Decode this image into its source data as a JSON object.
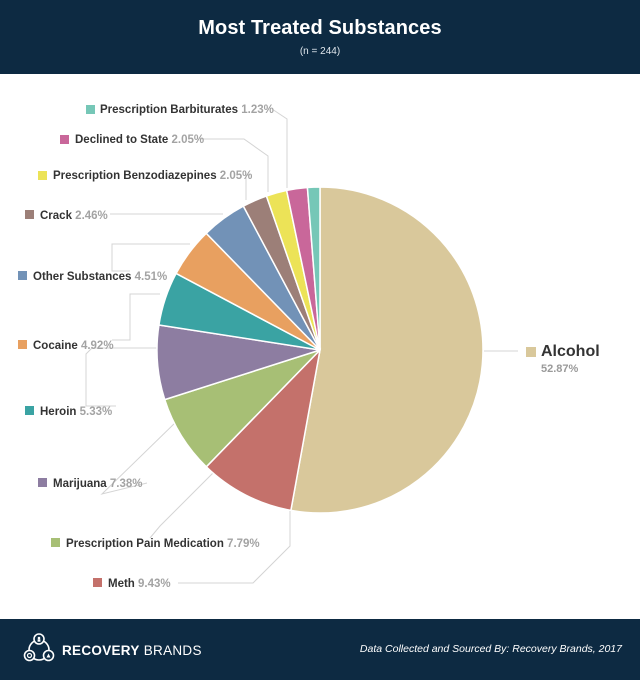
{
  "header": {
    "title": "Most Treated Substances",
    "subtitle": "(n = 244)"
  },
  "footer": {
    "brand_bold": "RECOVERY",
    "brand_light": " BRANDS",
    "source": "Data Collected and Sourced By: Recovery Brands, 2017"
  },
  "chart_data": {
    "type": "pie",
    "title": "Most Treated Substances",
    "subtitle": "(n = 244)",
    "slices": [
      {
        "label": "Alcohol",
        "value": 52.87,
        "value_label": "52.87%",
        "color": "#d9c89b"
      },
      {
        "label": "Meth",
        "value": 9.43,
        "value_label": "9.43%",
        "color": "#c4716b"
      },
      {
        "label": "Prescription Pain Medication",
        "value": 7.79,
        "value_label": "7.79%",
        "color": "#a7bf75"
      },
      {
        "label": "Marijuana",
        "value": 7.38,
        "value_label": "7.38%",
        "color": "#8d7da1"
      },
      {
        "label": "Heroin",
        "value": 5.33,
        "value_label": "5.33%",
        "color": "#3aa3a3"
      },
      {
        "label": "Cocaine",
        "value": 4.92,
        "value_label": "4.92%",
        "color": "#e8a060"
      },
      {
        "label": "Other Substances",
        "value": 4.51,
        "value_label": "4.51%",
        "color": "#7292b7"
      },
      {
        "label": "Crack",
        "value": 2.46,
        "value_label": "2.46%",
        "color": "#9c7f78"
      },
      {
        "label": "Prescription Benzodiazepines",
        "value": 2.05,
        "value_label": "2.05%",
        "color": "#ece357"
      },
      {
        "label": "Declined to State",
        "value": 2.05,
        "value_label": "2.05%",
        "color": "#c9679a"
      },
      {
        "label": "Prescription Barbiturates",
        "value": 1.23,
        "value_label": "1.23%",
        "color": "#76c7b7"
      }
    ],
    "legend": "callout labels around pie"
  },
  "icons": {
    "brand_logo": "recovery-brands-logo-icon"
  }
}
